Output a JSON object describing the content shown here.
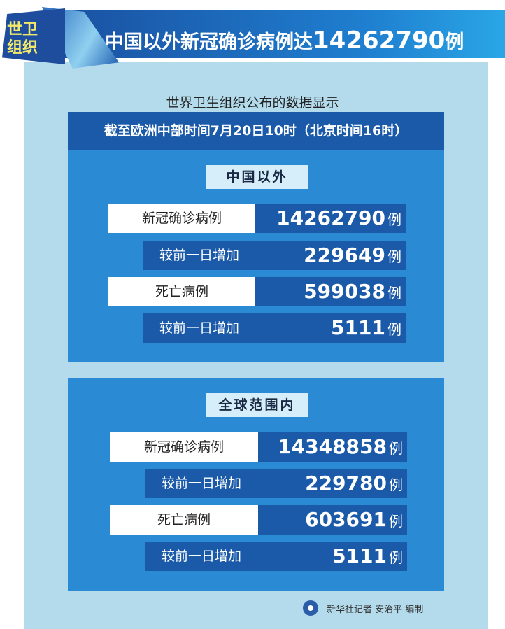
{
  "banner": {
    "tag": "世卫组织",
    "title_prefix": "中国以外新冠确诊病例达",
    "title_number": "14262790",
    "title_suffix": "例"
  },
  "intro": "世界卫生组织公布的数据显示",
  "date_line": "截至欧洲中部时间7月20日10时（北京时间16时）",
  "sections": [
    {
      "title": "中国以外",
      "rows": [
        {
          "label": "新冠确诊病例",
          "value": "14262790",
          "unit": "例"
        },
        {
          "label": "较前一日增加",
          "value": "229649",
          "unit": "例"
        },
        {
          "label": "死亡病例",
          "value": "599038",
          "unit": "例"
        },
        {
          "label": "较前一日增加",
          "value": "5111",
          "unit": "例"
        }
      ]
    },
    {
      "title": "全球范围内",
      "rows": [
        {
          "label": "新冠确诊病例",
          "value": "14348858",
          "unit": "例"
        },
        {
          "label": "较前一日增加",
          "value": "229780",
          "unit": "例"
        },
        {
          "label": "死亡病例",
          "value": "603691",
          "unit": "例"
        },
        {
          "label": "较前一日增加",
          "value": "5111",
          "unit": "例"
        }
      ]
    }
  ],
  "credit": "新华社记者 安治平 编制",
  "colors": {
    "dark_blue": "#1b5aa9",
    "box_blue": "#2a8ad3",
    "panel": "#b3dbec",
    "tag_yellow": "#f4ea6a"
  }
}
